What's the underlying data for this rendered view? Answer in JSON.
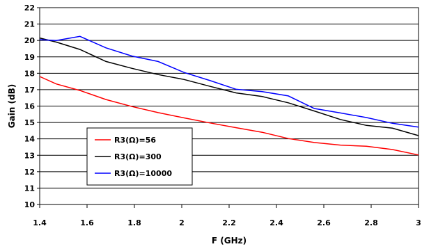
{
  "chart_data": {
    "type": "line",
    "title": "",
    "xlabel": "F (GHz)",
    "ylabel": "Gain (dB)",
    "xlim": [
      1.4,
      3
    ],
    "ylim": [
      10,
      22
    ],
    "xticks": [
      1.4,
      1.6,
      1.8,
      2,
      2.2,
      2.4,
      2.6,
      2.8,
      3
    ],
    "xtick_labels": [
      "1.4",
      "1.6",
      "1.8",
      "2",
      "2.2",
      "2.4",
      "2.6",
      "2.8",
      "3"
    ],
    "yticks": [
      10,
      11,
      12,
      13,
      14,
      15,
      16,
      17,
      18,
      19,
      20,
      21,
      22
    ],
    "yticks_labels": [
      "10",
      "11",
      "12",
      "13",
      "14",
      "15",
      "16",
      "17",
      "18",
      "19",
      "20",
      "21",
      "22"
    ],
    "grid": "horizontal",
    "legend_position": "lower-left",
    "series": [
      {
        "name": "R3(Ω)=56",
        "color": "#ff0000",
        "x": [
          1.4,
          1.47,
          1.57,
          1.68,
          1.79,
          1.9,
          2.01,
          2.12,
          2.23,
          2.34,
          2.45,
          2.56,
          2.67,
          2.78,
          2.89,
          3.0
        ],
        "y": [
          17.8,
          17.35,
          16.95,
          16.4,
          15.97,
          15.6,
          15.28,
          14.97,
          14.68,
          14.4,
          14.02,
          13.78,
          13.62,
          13.55,
          13.35,
          13.02
        ]
      },
      {
        "name": "R3(Ω)=300",
        "color": "#000000",
        "x": [
          1.4,
          1.47,
          1.57,
          1.68,
          1.79,
          1.9,
          2.01,
          2.12,
          2.23,
          2.34,
          2.45,
          2.56,
          2.67,
          2.78,
          2.89,
          3.0
        ],
        "y": [
          20.15,
          19.9,
          19.45,
          18.72,
          18.3,
          17.92,
          17.62,
          17.2,
          16.8,
          16.58,
          16.2,
          15.7,
          15.18,
          14.82,
          14.65,
          14.2
        ]
      },
      {
        "name": "R3(Ω)=10000",
        "color": "#0000ff",
        "x": [
          1.4,
          1.47,
          1.57,
          1.68,
          1.79,
          1.9,
          2.01,
          2.12,
          2.23,
          2.34,
          2.45,
          2.56,
          2.67,
          2.78,
          2.89,
          3.0
        ],
        "y": [
          20.05,
          20.0,
          20.25,
          19.55,
          19.05,
          18.72,
          18.05,
          17.55,
          17.02,
          16.88,
          16.62,
          15.85,
          15.58,
          15.3,
          14.95,
          14.72
        ]
      }
    ]
  }
}
